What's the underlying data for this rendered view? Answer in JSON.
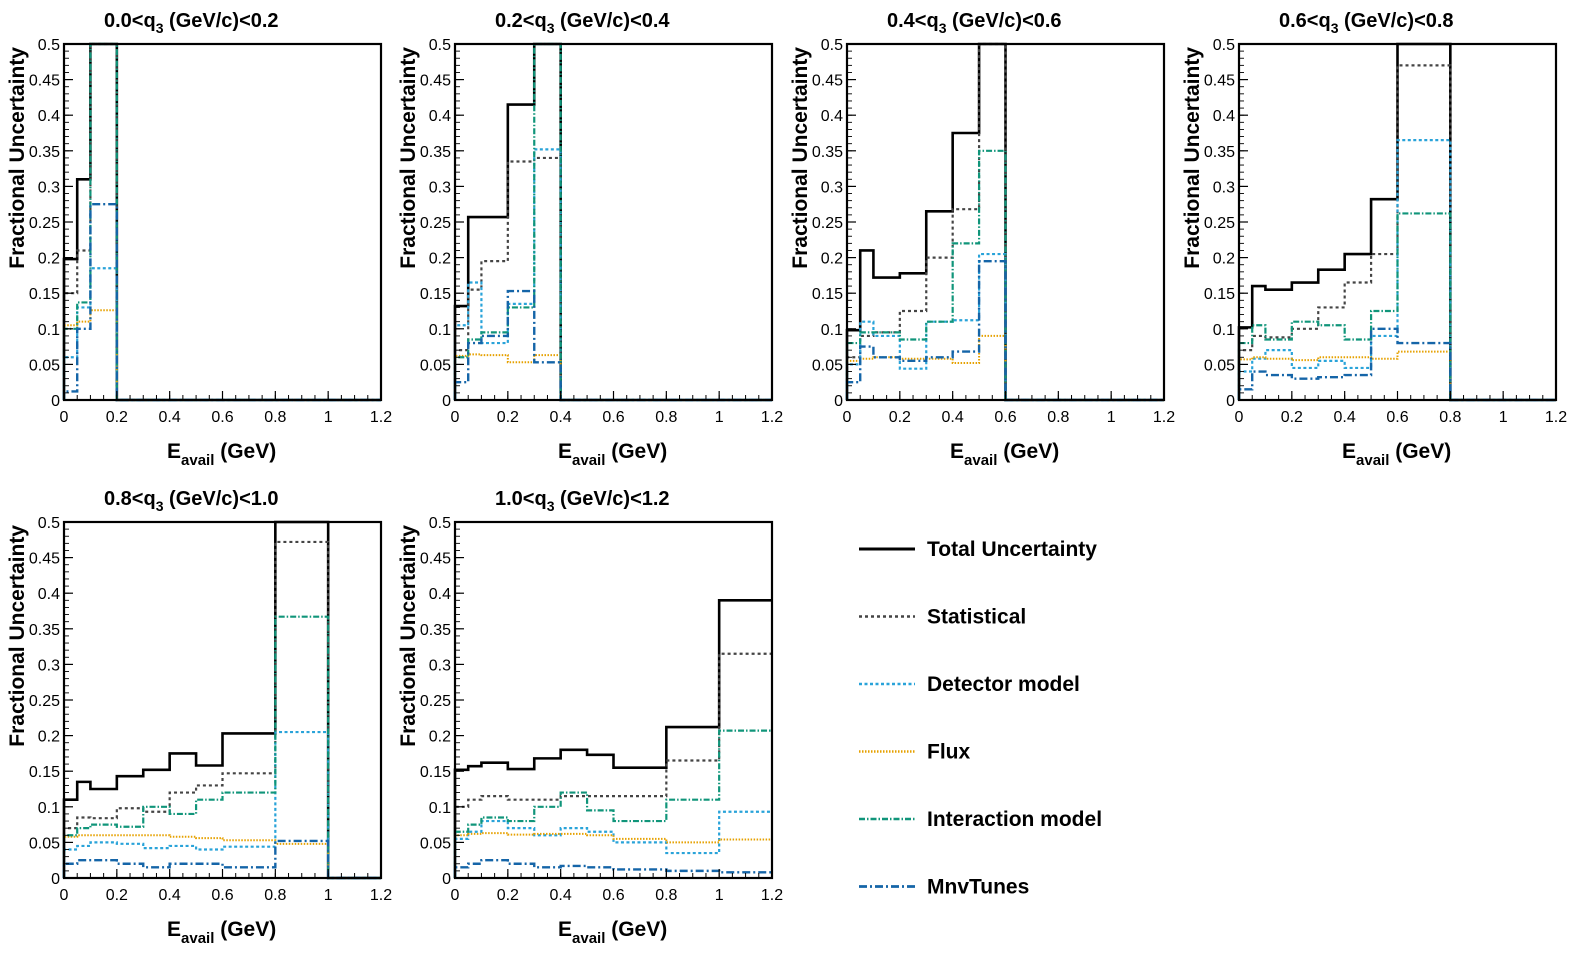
{
  "chart_data": {
    "type": "histogram-grid",
    "xlabel": "E",
    "xlabel_sub": "avail",
    "xlabel_unit": "(GeV)",
    "ylabel": "Fractional Uncertainty",
    "xlim": [
      0,
      1.2
    ],
    "ylim": [
      0,
      0.5
    ],
    "xticks": [
      "0",
      "0.2",
      "0.4",
      "0.6",
      "0.8",
      "1",
      "1.2"
    ],
    "yticks": [
      "0",
      "0.05",
      "0.1",
      "0.15",
      "0.2",
      "0.25",
      "0.3",
      "0.35",
      "0.4",
      "0.45",
      "0.5"
    ],
    "bin_edges": [
      0,
      0.05,
      0.1,
      0.2,
      0.3,
      0.4,
      0.5,
      0.6,
      0.8,
      1.0,
      1.2
    ],
    "series_styles": [
      {
        "key": "total",
        "name": "Total Uncertainty",
        "color": "#000000",
        "dash": "",
        "width": 2.6
      },
      {
        "key": "stat",
        "name": "Statistical",
        "color": "#444444",
        "dash": "3,3",
        "width": 2.2
      },
      {
        "key": "detector",
        "name": "Detector model",
        "color": "#29a3d9",
        "dash": "3,2.5",
        "width": 2.2
      },
      {
        "key": "flux",
        "name": "Flux",
        "color": "#e6a100",
        "dash": "1.5,1.5",
        "width": 2.0
      },
      {
        "key": "interaction",
        "name": "Interaction model",
        "color": "#10957a",
        "dash": "6,2,1.5,2",
        "width": 2.2
      },
      {
        "key": "mnvtunes",
        "name": "MnvTunes",
        "color": "#1565a8",
        "dash": "8,3,2,3",
        "width": 2.4
      }
    ],
    "panels": [
      {
        "title_prefix": "0.0<q",
        "title_sub": "3",
        "title_suffix": " (GeV/c)<0.2",
        "series": {
          "total": [
            0.198,
            0.31,
            0.5,
            0,
            0,
            0,
            0,
            0,
            0,
            0
          ],
          "stat": [
            0.15,
            0.21,
            0.5,
            0,
            0,
            0,
            0,
            0,
            0,
            0
          ],
          "detector": [
            0.06,
            0.13,
            0.185,
            0,
            0,
            0,
            0,
            0,
            0,
            0
          ],
          "flux": [
            0.105,
            0.11,
            0.126,
            0,
            0,
            0,
            0,
            0,
            0,
            0
          ],
          "interaction": [
            0.1,
            0.137,
            0.5,
            0,
            0,
            0,
            0,
            0,
            0,
            0
          ],
          "mnvtunes": [
            0.012,
            0.1,
            0.275,
            0,
            0,
            0,
            0,
            0,
            0,
            0
          ]
        }
      },
      {
        "title_prefix": "0.2<q",
        "title_sub": "3",
        "title_suffix": " (GeV/c)<0.4",
        "series": {
          "total": [
            0.132,
            0.257,
            0.257,
            0.415,
            0.5,
            0,
            0,
            0,
            0,
            0
          ],
          "stat": [
            0.07,
            0.155,
            0.195,
            0.335,
            0.34,
            0,
            0,
            0,
            0,
            0
          ],
          "detector": [
            0.105,
            0.165,
            0.08,
            0.135,
            0.352,
            0,
            0,
            0,
            0,
            0
          ],
          "flux": [
            0.062,
            0.064,
            0.063,
            0.053,
            0.063,
            0,
            0,
            0,
            0,
            0
          ],
          "interaction": [
            0.06,
            0.085,
            0.095,
            0.13,
            0.5,
            0,
            0,
            0,
            0,
            0
          ],
          "mnvtunes": [
            0.025,
            0.08,
            0.09,
            0.153,
            0.053,
            0,
            0,
            0,
            0,
            0
          ]
        }
      },
      {
        "title_prefix": "0.4<q",
        "title_sub": "3",
        "title_suffix": " (GeV/c)<0.6",
        "series": {
          "total": [
            0.098,
            0.21,
            0.172,
            0.178,
            0.265,
            0.375,
            0.5,
            0,
            0,
            0
          ],
          "stat": [
            0.06,
            0.09,
            0.095,
            0.125,
            0.2,
            0.268,
            0.5,
            0,
            0,
            0
          ],
          "detector": [
            0.05,
            0.11,
            0.09,
            0.044,
            0.11,
            0.112,
            0.205,
            0,
            0,
            0
          ],
          "flux": [
            0.055,
            0.058,
            0.06,
            0.058,
            0.058,
            0.052,
            0.09,
            0,
            0,
            0
          ],
          "interaction": [
            0.08,
            0.095,
            0.095,
            0.085,
            0.11,
            0.22,
            0.35,
            0,
            0,
            0
          ],
          "mnvtunes": [
            0.025,
            0.075,
            0.06,
            0.055,
            0.06,
            0.068,
            0.195,
            0,
            0,
            0
          ]
        }
      },
      {
        "title_prefix": "0.6<q",
        "title_sub": "3",
        "title_suffix": " (GeV/c)<0.8",
        "series": {
          "total": [
            0.102,
            0.16,
            0.155,
            0.165,
            0.183,
            0.205,
            0.282,
            0.5,
            0,
            0
          ],
          "stat": [
            0.07,
            0.09,
            0.088,
            0.1,
            0.13,
            0.165,
            0.205,
            0.47,
            0,
            0
          ],
          "detector": [
            0.04,
            0.058,
            0.07,
            0.045,
            0.055,
            0.045,
            0.09,
            0.365,
            0,
            0
          ],
          "flux": [
            0.057,
            0.06,
            0.058,
            0.056,
            0.06,
            0.06,
            0.058,
            0.068,
            0,
            0
          ],
          "interaction": [
            0.08,
            0.105,
            0.085,
            0.11,
            0.105,
            0.085,
            0.125,
            0.262,
            0,
            0
          ],
          "mnvtunes": [
            0.015,
            0.04,
            0.035,
            0.03,
            0.032,
            0.035,
            0.1,
            0.08,
            0,
            0
          ]
        }
      },
      {
        "title_prefix": "0.8<q",
        "title_sub": "3",
        "title_suffix": " (GeV/c)<1.0",
        "series": {
          "total": [
            0.11,
            0.135,
            0.125,
            0.143,
            0.152,
            0.175,
            0.158,
            0.203,
            0.5,
            0
          ],
          "stat": [
            0.07,
            0.085,
            0.084,
            0.098,
            0.093,
            0.12,
            0.13,
            0.147,
            0.472,
            0
          ],
          "detector": [
            0.04,
            0.045,
            0.05,
            0.048,
            0.042,
            0.045,
            0.04,
            0.044,
            0.205,
            0
          ],
          "flux": [
            0.058,
            0.06,
            0.06,
            0.06,
            0.06,
            0.058,
            0.056,
            0.053,
            0.048,
            0
          ],
          "interaction": [
            0.06,
            0.07,
            0.075,
            0.072,
            0.1,
            0.09,
            0.11,
            0.12,
            0.367,
            0
          ],
          "mnvtunes": [
            0.02,
            0.025,
            0.025,
            0.02,
            0.015,
            0.02,
            0.02,
            0.015,
            0.052,
            0
          ]
        }
      },
      {
        "title_prefix": "1.0<q",
        "title_sub": "3",
        "title_suffix": " (GeV/c)<1.2",
        "series": {
          "total": [
            0.152,
            0.157,
            0.162,
            0.153,
            0.168,
            0.18,
            0.173,
            0.155,
            0.212,
            0.39
          ],
          "stat": [
            0.1,
            0.11,
            0.115,
            0.11,
            0.11,
            0.115,
            0.115,
            0.115,
            0.165,
            0.315
          ],
          "detector": [
            0.055,
            0.065,
            0.08,
            0.07,
            0.06,
            0.07,
            0.065,
            0.05,
            0.035,
            0.093
          ],
          "flux": [
            0.06,
            0.062,
            0.063,
            0.061,
            0.062,
            0.062,
            0.06,
            0.055,
            0.05,
            0.054
          ],
          "interaction": [
            0.065,
            0.075,
            0.085,
            0.08,
            0.1,
            0.12,
            0.095,
            0.08,
            0.11,
            0.207
          ],
          "mnvtunes": [
            0.015,
            0.02,
            0.025,
            0.02,
            0.015,
            0.017,
            0.015,
            0.012,
            0.01,
            0.008
          ]
        }
      }
    ],
    "legend": [
      "Total Uncertainty",
      "Statistical",
      "Detector model",
      "Flux",
      "Interaction model",
      "MnvTunes"
    ],
    "legend_position": "bottom-right"
  }
}
